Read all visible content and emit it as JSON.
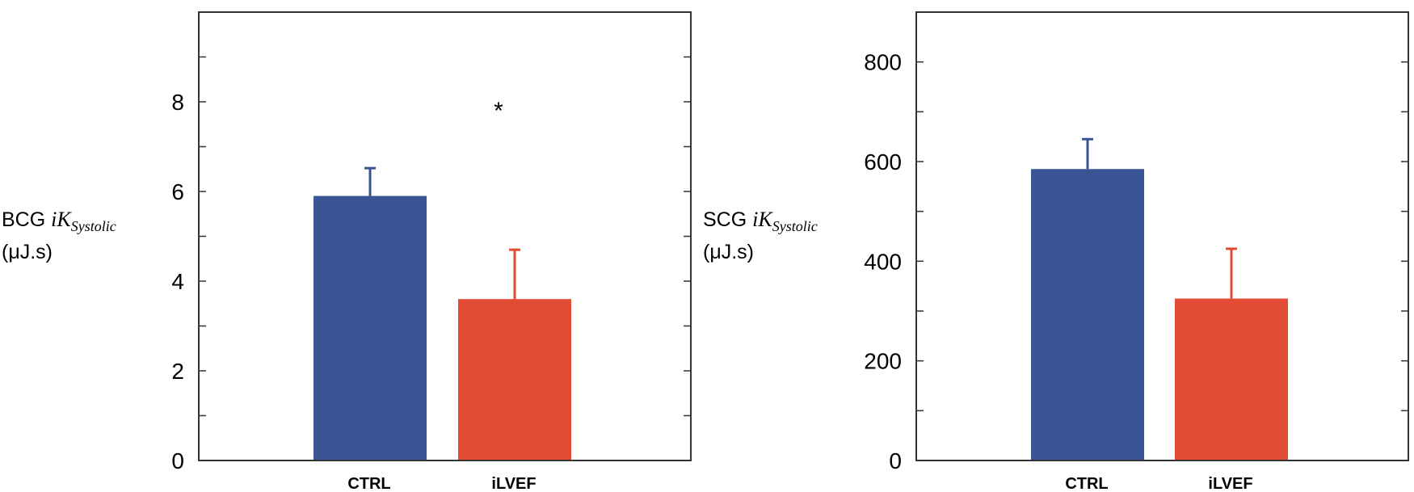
{
  "chart_data": [
    {
      "type": "bar",
      "categories": [
        "CTRL",
        "iLVEF"
      ],
      "values": [
        5.9,
        3.6
      ],
      "errors": [
        0.62,
        1.1
      ],
      "colors": [
        "#3a5594",
        "#e24b33"
      ],
      "ylabel_main": "BCG ",
      "ylabel_math": "iK",
      "ylabel_sub": "Systolic",
      "ylabel_unit": "(μJ.s)",
      "ylim": [
        0,
        10
      ],
      "yticks": [
        0,
        2,
        4,
        6,
        8
      ],
      "annotation": {
        "text": "*",
        "category": "iLVEF",
        "value": 7.8
      }
    },
    {
      "type": "bar",
      "categories": [
        "CTRL",
        "iLVEF"
      ],
      "values": [
        585,
        325
      ],
      "errors": [
        60,
        100
      ],
      "colors": [
        "#3a5594",
        "#e24b33"
      ],
      "ylabel_main": "SCG ",
      "ylabel_math": "iK",
      "ylabel_sub": "Systolic",
      "ylabel_unit": "(μJ.s)",
      "ylim": [
        0,
        900
      ],
      "yticks": [
        0,
        200,
        400,
        600,
        800
      ]
    }
  ]
}
